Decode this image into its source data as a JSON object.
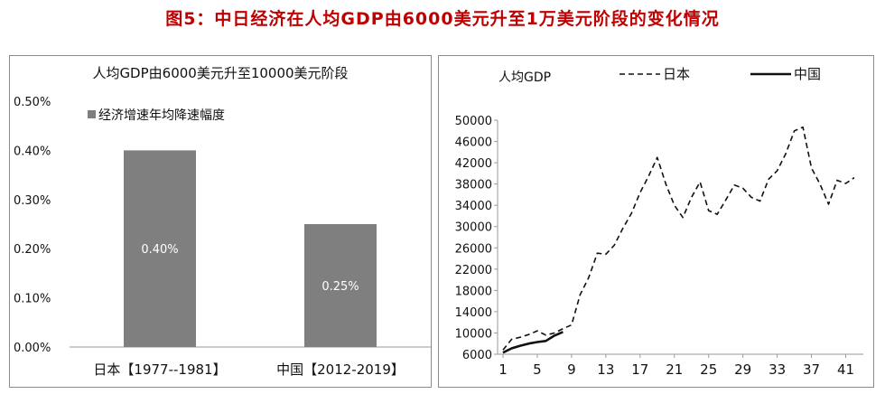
{
  "figure_title": "图5：中日经济在人均GDP由6000美元升至1万美元阶段的变化情况",
  "chart_data": [
    {
      "type": "bar",
      "title": "人均GDP由6000美元升至10000美元阶段",
      "legend": "经济增速年均降速幅度",
      "categories": [
        "日本【1977--1981】",
        "中国【2012-2019】"
      ],
      "values": [
        0.4,
        0.25
      ],
      "data_labels": [
        "0.40%",
        "0.25%"
      ],
      "ylim": [
        0,
        0.5
      ],
      "yticks": [
        "0.00%",
        "0.10%",
        "0.20%",
        "0.30%",
        "0.40%",
        "0.50%"
      ],
      "color": "#7f7f7f"
    },
    {
      "type": "line",
      "title": "人均GDP",
      "xlim": [
        1,
        42
      ],
      "ylim": [
        6000,
        50000
      ],
      "xticks": [
        "1",
        "5",
        "9",
        "13",
        "17",
        "21",
        "25",
        "29",
        "33",
        "37",
        "41"
      ],
      "yticks": [
        "6000",
        "10000",
        "14000",
        "18000",
        "22000",
        "26000",
        "30000",
        "34000",
        "38000",
        "42000",
        "46000",
        "50000"
      ],
      "series": [
        {
          "name": "日本",
          "style": "dashed",
          "x": [
            1,
            2,
            3,
            4,
            5,
            6,
            7,
            8,
            9,
            10,
            11,
            12,
            13,
            14,
            15,
            16,
            17,
            18,
            19,
            20,
            21,
            22,
            23,
            24,
            25,
            26,
            27,
            28,
            29,
            30,
            31,
            32,
            33,
            34,
            35,
            36,
            37,
            38,
            39,
            40,
            41,
            42
          ],
          "values": [
            6800,
            8800,
            9200,
            9700,
            10400,
            9600,
            10000,
            10800,
            11500,
            17200,
            20400,
            25000,
            24800,
            26500,
            29700,
            32500,
            36400,
            39500,
            43000,
            38000,
            34000,
            31700,
            35500,
            38400,
            33000,
            32300,
            35000,
            37800,
            37200,
            35500,
            34800,
            38900,
            40500,
            43700,
            48000,
            48700,
            41000,
            38000,
            34200,
            38700,
            38100,
            39200
          ]
        },
        {
          "name": "中国",
          "style": "solid",
          "x": [
            1,
            2,
            3,
            4,
            5,
            6,
            7,
            8
          ],
          "values": [
            6300,
            7100,
            7600,
            8000,
            8300,
            8500,
            9500,
            10200
          ]
        }
      ]
    }
  ]
}
